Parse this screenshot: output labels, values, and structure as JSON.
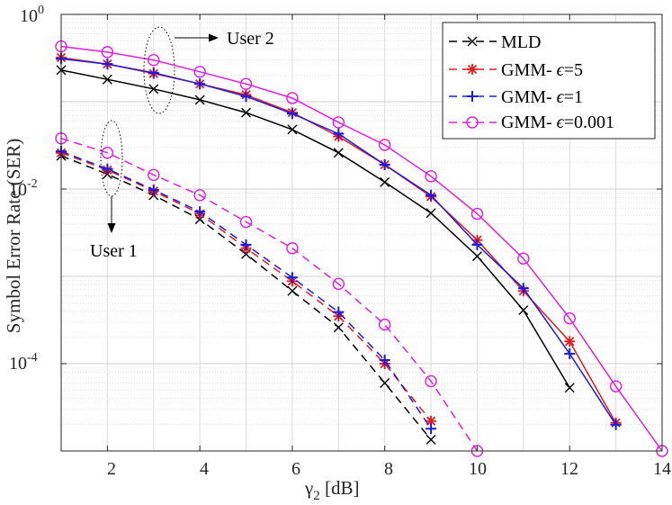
{
  "chart_data": {
    "type": "line",
    "y_scale": "log",
    "xlabel_main": "γ",
    "xlabel_sub": "2",
    "xlabel_unit": " [dB]",
    "ylabel": "Symbol Error Rate (SER)",
    "xlim": [
      1,
      14
    ],
    "ylim": [
      1e-05,
      1
    ],
    "x_ticks": [
      2,
      4,
      6,
      8,
      10,
      12,
      14
    ],
    "y_ticks": [
      {
        "value": 1,
        "mantissa": "10",
        "exp": "0"
      },
      {
        "value": 0.01,
        "mantissa": "10",
        "exp": "-2"
      },
      {
        "value": 0.0001,
        "mantissa": "10",
        "exp": "-4"
      }
    ],
    "grid": true,
    "legend_position": "top-right",
    "annotations": {
      "user1": "User 1",
      "user2": "User 2"
    },
    "series": [
      {
        "name": "MLD",
        "legend_prefix": "MLD",
        "legend_eps": "",
        "color": "#000000",
        "marker": "x",
        "dash": "solid",
        "x": [
          1,
          2,
          3,
          4,
          5,
          6,
          7,
          8,
          9,
          10,
          11,
          12
        ],
        "y": [
          0.23,
          0.18,
          0.14,
          0.105,
          0.075,
          0.048,
          0.026,
          0.012,
          0.0053,
          0.0017,
          0.00041,
          5.3e-05
        ]
      },
      {
        "name": "GMM- ϵ=5",
        "legend_prefix": "GMM- ",
        "legend_eps": "=5",
        "color": "#e8191c",
        "marker": "star",
        "dash": "solid",
        "x": [
          1,
          2,
          3,
          4,
          5,
          6,
          7,
          8,
          9,
          10,
          11,
          12,
          13
        ],
        "y": [
          0.32,
          0.27,
          0.21,
          0.16,
          0.12,
          0.075,
          0.04,
          0.019,
          0.0082,
          0.0026,
          0.00068,
          0.00018,
          2.1e-05
        ]
      },
      {
        "name": "GMM- ϵ=1",
        "legend_prefix": "GMM- ",
        "legend_eps": "=1",
        "color": "#1a1ae8",
        "marker": "plus",
        "dash": "solid",
        "x": [
          1,
          2,
          3,
          4,
          5,
          6,
          7,
          8,
          9,
          10,
          11,
          12,
          13
        ],
        "y": [
          0.31,
          0.27,
          0.215,
          0.16,
          0.115,
          0.073,
          0.043,
          0.019,
          0.0085,
          0.0023,
          0.00073,
          0.00013,
          2e-05
        ]
      },
      {
        "name": "GMM- ϵ=0.001",
        "legend_prefix": "GMM- ",
        "legend_eps": "=0.001",
        "color": "#e619e6",
        "marker": "circle",
        "dash": "solid",
        "x": [
          1,
          2,
          3,
          4,
          5,
          6,
          7,
          8,
          9,
          10,
          11,
          12,
          13,
          14
        ],
        "y": [
          0.43,
          0.37,
          0.3,
          0.22,
          0.16,
          0.11,
          0.058,
          0.032,
          0.014,
          0.0052,
          0.0016,
          0.00033,
          5.5e-05,
          1e-05
        ]
      },
      {
        "name": "MLD",
        "legend_prefix": "",
        "legend_eps": "",
        "color": "#000000",
        "marker": "x",
        "dash": "dashed",
        "x": [
          1,
          2,
          3,
          4,
          5,
          6,
          7,
          8,
          9
        ],
        "y": [
          0.024,
          0.0148,
          0.0085,
          0.0045,
          0.0018,
          0.00068,
          0.00026,
          6e-05,
          1.35e-05
        ]
      },
      {
        "name": "GMM- ϵ=5",
        "legend_prefix": "",
        "legend_eps": "",
        "color": "#e8191c",
        "marker": "star",
        "dash": "dashed",
        "x": [
          1,
          2,
          3,
          4,
          5,
          6,
          7,
          8,
          9
        ],
        "y": [
          0.026,
          0.0165,
          0.0095,
          0.0052,
          0.0021,
          0.00088,
          0.00035,
          0.0001,
          2.2e-05
        ]
      },
      {
        "name": "GMM- ϵ=1",
        "legend_prefix": "",
        "legend_eps": "",
        "color": "#1a1ae8",
        "marker": "plus",
        "dash": "dashed",
        "x": [
          1,
          2,
          3,
          4,
          5,
          6,
          7,
          8,
          9
        ],
        "y": [
          0.027,
          0.017,
          0.0098,
          0.0055,
          0.0023,
          0.00097,
          0.00039,
          0.00011,
          1.8e-05
        ]
      },
      {
        "name": "GMM- ϵ=0.001",
        "legend_prefix": "",
        "legend_eps": "",
        "color": "#e619e6",
        "marker": "circle",
        "dash": "dashed",
        "x": [
          1,
          2,
          3,
          4,
          5,
          6,
          7,
          8,
          9,
          10
        ],
        "y": [
          0.038,
          0.026,
          0.0145,
          0.0085,
          0.0042,
          0.0021,
          0.00082,
          0.00028,
          6.3e-05,
          1e-05
        ]
      }
    ]
  }
}
